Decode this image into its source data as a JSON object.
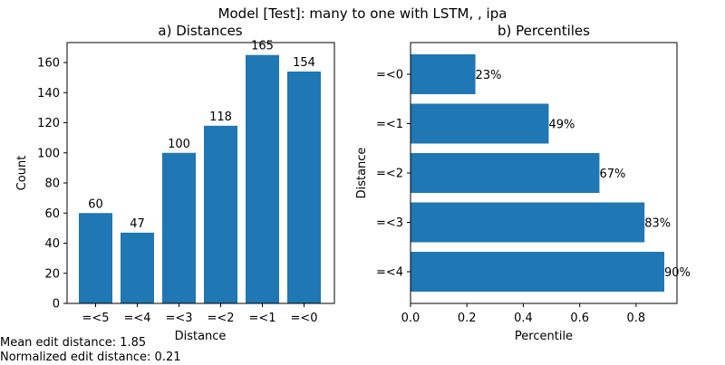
{
  "figure": {
    "suptitle": "Model [Test]: many to one with LSTM, , ipa",
    "bar_color": "#1f77b4"
  },
  "stats": {
    "mean_edit_distance": "Mean edit distance: 1.85",
    "normalized_edit_distance": "Normalized edit distance: 0.21"
  },
  "chart_data": [
    {
      "type": "bar",
      "title": "a) Distances",
      "xlabel": "Distance",
      "ylabel": "Count",
      "categories": [
        "=<5",
        "=<4",
        "=<3",
        "=<2",
        "=<1",
        "=<0"
      ],
      "values": [
        60,
        47,
        100,
        118,
        165,
        154
      ],
      "data_labels": [
        "60",
        "47",
        "100",
        "118",
        "165",
        "154"
      ],
      "yticks": [
        0,
        20,
        40,
        60,
        80,
        100,
        120,
        140,
        160
      ],
      "ylim": [
        0,
        173.25
      ],
      "grid": false
    },
    {
      "type": "bar",
      "orientation": "horizontal",
      "title": "b) Percentiles",
      "xlabel": "Percentile",
      "ylabel": "Distance",
      "categories": [
        "=<0",
        "=<1",
        "=<2",
        "=<3",
        "=<4"
      ],
      "values": [
        0.23,
        0.49,
        0.67,
        0.83,
        0.9
      ],
      "data_labels": [
        "23%",
        "49%",
        "67%",
        "83%",
        "90%"
      ],
      "xticks": [
        "0.0",
        "0.2",
        "0.4",
        "0.6",
        "0.8"
      ],
      "xlim": [
        0,
        0.945
      ],
      "grid": false
    }
  ]
}
